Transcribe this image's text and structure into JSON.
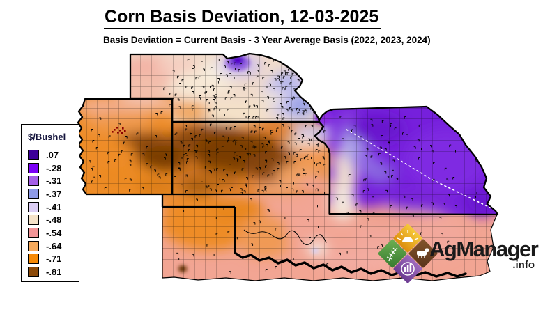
{
  "header": {
    "title": "Corn Basis Deviation, 12-03-2025",
    "subtitle": "Basis Deviation = Current Basis - 3 Year Average Basis (2022, 2023, 2024)"
  },
  "legend": {
    "title": "$/Bushel",
    "entries": [
      {
        "label": ".07",
        "color": "#3C0099"
      },
      {
        "label": "-.28",
        "color": "#7B00F7"
      },
      {
        "label": "-.31",
        "color": "#A55FE8"
      },
      {
        "label": "-.37",
        "color": "#8F9BE8"
      },
      {
        "label": "-.41",
        "color": "#DCCEF5"
      },
      {
        "label": "-.48",
        "color": "#F5E3C9"
      },
      {
        "label": "-.54",
        "color": "#F29597"
      },
      {
        "label": "-.64",
        "color": "#F5A95C"
      },
      {
        "label": "-.71",
        "color": "#F78A05"
      },
      {
        "label": "-.81",
        "color": "#8C4A08"
      }
    ]
  },
  "map": {
    "regions": [
      "Colorado",
      "Nebraska",
      "Kansas",
      "Oklahoma",
      "Missouri"
    ]
  },
  "logo": {
    "name": "AgManager",
    "suffix": ".info",
    "colors": {
      "sun": "#E8A21A",
      "wheat": "#4E9A3E",
      "cattle": "#6B4423",
      "chart": "#7B4FA0"
    }
  }
}
